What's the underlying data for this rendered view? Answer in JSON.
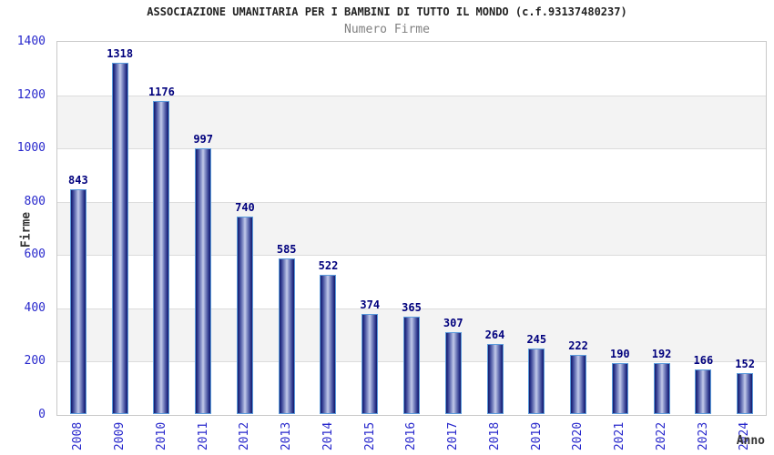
{
  "header": {
    "title": "ASSOCIAZIONE UMANITARIA PER I BAMBINI DI TUTTO IL MONDO (c.f.93137480237)",
    "subtitle": "Numero Firme"
  },
  "chart_data": {
    "type": "bar",
    "title": "ASSOCIAZIONE UMANITARIA PER I BAMBINI DI TUTTO IL MONDO (c.f.93137480237)",
    "subtitle": "Numero Firme",
    "xlabel": "Anno",
    "ylabel": "Firme",
    "categories": [
      "2008",
      "2009",
      "2010",
      "2011",
      "2012",
      "2013",
      "2014",
      "2015",
      "2016",
      "2017",
      "2018",
      "2019",
      "2020",
      "2021",
      "2022",
      "2023",
      "2024"
    ],
    "values": [
      843,
      1318,
      1176,
      997,
      740,
      585,
      522,
      374,
      365,
      307,
      264,
      245,
      222,
      190,
      192,
      166,
      152
    ],
    "ylim": [
      0,
      1400
    ],
    "ytick_step": 200,
    "grid": true,
    "legend": "none",
    "band_colors": [
      "#ffffff",
      "#f3f3f3"
    ],
    "colors": {
      "bar_edge_dark": "#151c68",
      "bar_mid": "#8f9ace",
      "bar_center_light": "#c4cbe9",
      "bar_border": "#5b9bdc",
      "tick_label": "#2828cc",
      "value_label": "#00007d",
      "axis_title": "#333333",
      "title": "#222222",
      "subtitle": "#808080",
      "gridline": "#dcdcdc",
      "plot_border": "#c9c9c9"
    }
  }
}
